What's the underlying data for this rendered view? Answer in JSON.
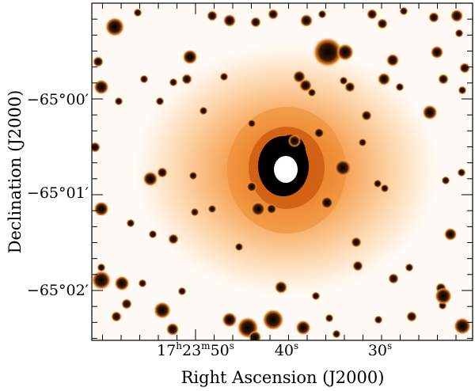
{
  "figure": {
    "x_axis_label": "Right Ascension (J2000)",
    "y_axis_label": "Declination (J2000)",
    "x_ticks": [
      {
        "hours": "17",
        "h": "h",
        "minutes": "23",
        "m": "m",
        "seconds": "50",
        "s": "s"
      },
      {
        "seconds": "40",
        "s": "s"
      },
      {
        "seconds": "30",
        "s": "s"
      }
    ],
    "y_ticks": [
      "−65°00′",
      "−65°01′",
      "−65°02′"
    ]
  },
  "colors": {
    "background_light": "#fffaf5",
    "halo_outer": "#ffd6a8",
    "halo_mid": "#f7a25a",
    "halo_inner": "#e8740f",
    "core": "#000000",
    "saturated_center": "#ffffff"
  }
}
